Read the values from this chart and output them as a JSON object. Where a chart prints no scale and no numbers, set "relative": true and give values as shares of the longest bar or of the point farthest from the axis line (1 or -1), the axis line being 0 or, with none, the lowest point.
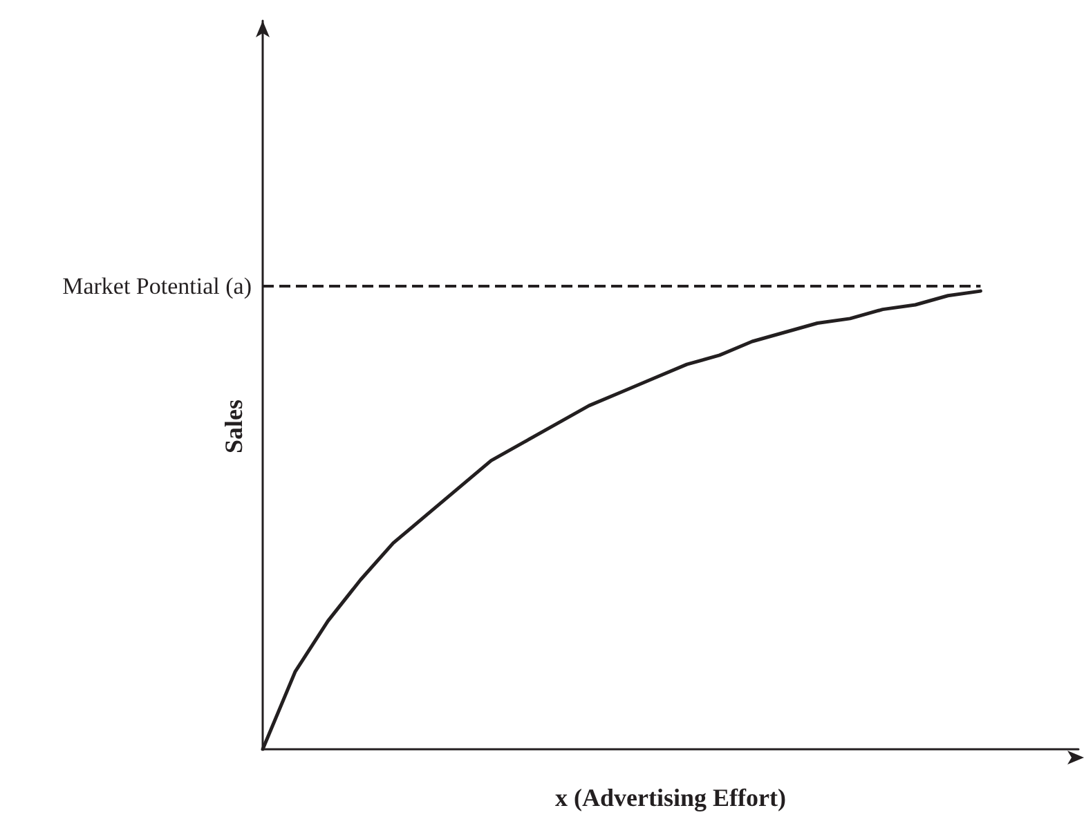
{
  "chart_data": {
    "type": "line",
    "relative": true,
    "xlabel": "x (Advertising Effort)",
    "ylabel": "Sales",
    "categories": [
      null,
      null,
      null,
      null,
      null,
      null,
      null,
      null,
      null,
      null,
      null,
      null,
      null,
      null,
      null,
      null,
      null,
      null,
      null,
      null,
      null,
      null,
      null,
      null,
      null,
      null
    ],
    "series": [
      {
        "color": "#231f20",
        "values": [
          0,
          0.17,
          0.28,
          0.37,
          0.45,
          0.51,
          0.57,
          0.63,
          0.67,
          0.71,
          0.75,
          0.78,
          0.81,
          0.84,
          0.86,
          0.89,
          0.91,
          0.93,
          0.94,
          0.96,
          0.97,
          0.99,
          1,
          null,
          null,
          null
        ]
      }
    ],
    "ref_lines": [
      {
        "axis": "y",
        "value": 1.01,
        "label": "Market Potential (a)",
        "color": "#231f20",
        "line_style": "dashed"
      }
    ],
    "marker": "none",
    "line_style": "solid",
    "grid": false
  }
}
